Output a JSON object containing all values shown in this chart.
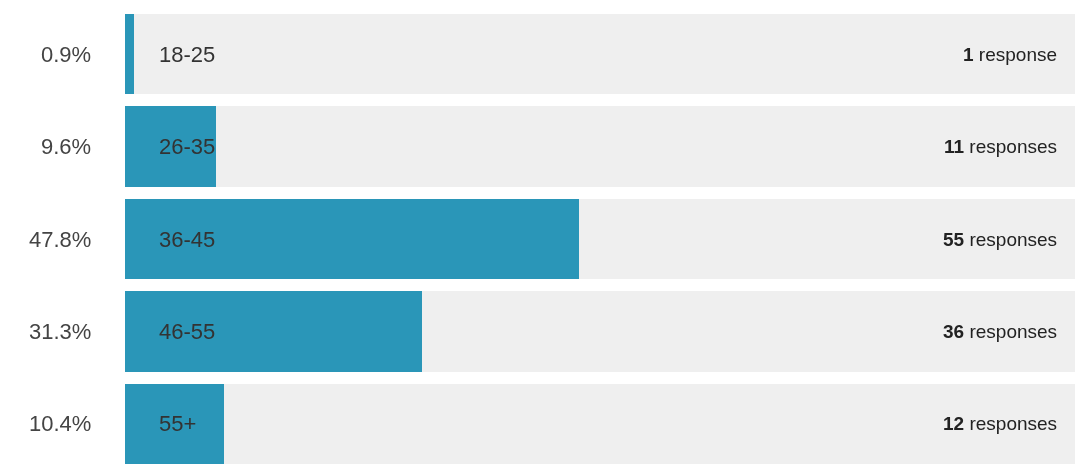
{
  "chart_data": {
    "type": "bar",
    "orientation": "horizontal",
    "stacked": true,
    "categories": [
      "18-25",
      "26-35",
      "36-45",
      "46-55",
      "55+"
    ],
    "series": [
      {
        "color": "#2a96b8",
        "values": [
          0.9,
          9.6,
          47.8,
          31.3,
          10.4
        ],
        "value_labels": [
          "0.9%",
          "9.6%",
          "47.8%",
          "31.3%",
          "10.4%"
        ]
      },
      {
        "color": "#efefef",
        "values": [
          99.1,
          90.4,
          52.2,
          68.7,
          89.6
        ]
      }
    ],
    "xlim": [
      0,
      100
    ],
    "annotations": [
      "1 response",
      "11 responses",
      "55 responses",
      "36 responses",
      "12 responses"
    ]
  }
}
